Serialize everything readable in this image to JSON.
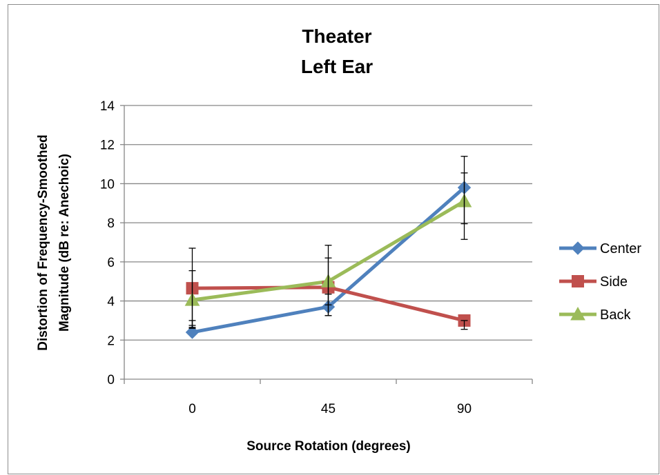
{
  "chart_data": {
    "type": "line",
    "title_lines": [
      "Theater",
      "Left Ear"
    ],
    "xlabel": "Source Rotation (degrees)",
    "ylabel_lines": [
      "Distortion of Frequency-Smoothed",
      "Magnitude (dB re: Anechoic)"
    ],
    "categories": [
      "0",
      "45",
      "90"
    ],
    "ylim": [
      0,
      14
    ],
    "yticks": [
      0,
      2,
      4,
      6,
      8,
      10,
      12,
      14
    ],
    "grid": true,
    "legend_position": "right",
    "series": [
      {
        "name": "Center",
        "color": "#4f81bd",
        "marker": "diamond",
        "values": [
          2.4,
          3.7,
          9.8
        ],
        "err_low": [
          2.65,
          3.25,
          7.15
        ],
        "err_high": [
          3.0,
          4.35,
          11.4
        ]
      },
      {
        "name": "Side",
        "color": "#c0504d",
        "marker": "square",
        "values": [
          4.65,
          4.7,
          3.0
        ],
        "err_low": [
          2.75,
          3.25,
          2.55
        ],
        "err_high": [
          6.7,
          6.2,
          3.0
        ]
      },
      {
        "name": "Back",
        "color": "#9bbb59",
        "marker": "triangle",
        "values": [
          4.05,
          5.0,
          9.1
        ],
        "err_low": [
          2.6,
          3.8,
          7.95
        ],
        "err_high": [
          5.55,
          6.85,
          10.55
        ]
      }
    ]
  }
}
